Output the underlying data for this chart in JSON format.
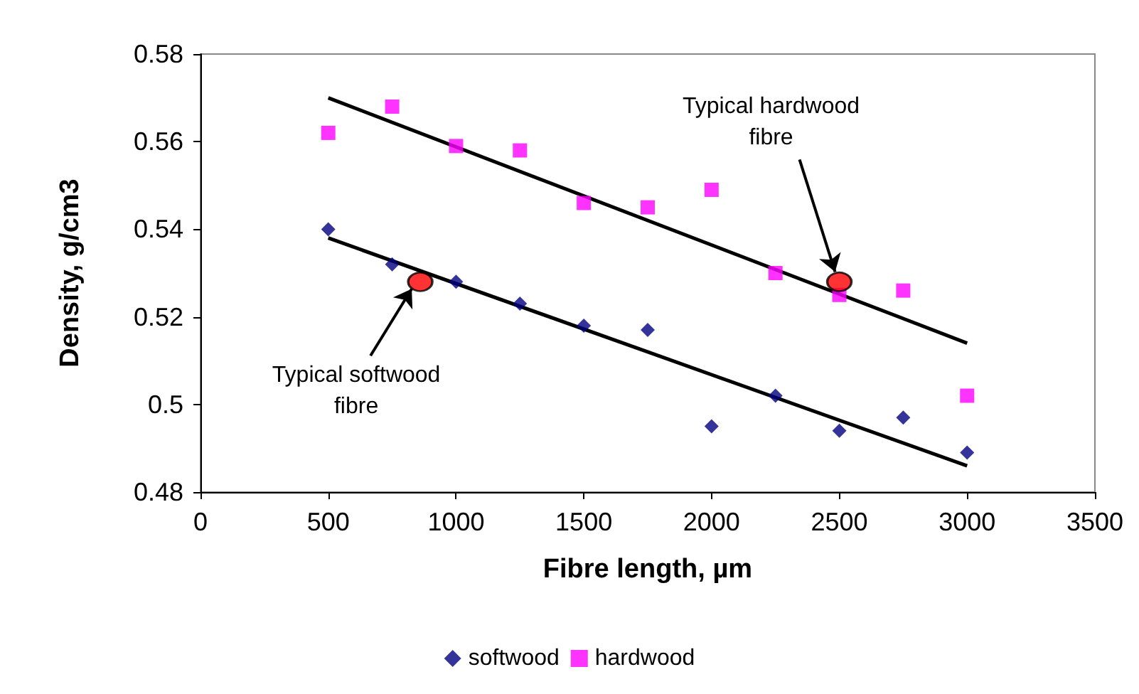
{
  "chart_data": {
    "type": "scatter",
    "xlabel": "Fibre length, µm",
    "ylabel": "Density, g/cm3",
    "x": [
      500,
      750,
      1000,
      1250,
      1500,
      1750,
      2000,
      2250,
      2500,
      2750,
      3000
    ],
    "series": [
      {
        "name": "softwood",
        "color": "#000080",
        "marker": "diamond",
        "values": [
          0.54,
          0.532,
          0.528,
          0.523,
          0.518,
          0.517,
          0.495,
          0.502,
          0.494,
          0.497,
          0.489
        ]
      },
      {
        "name": "hardwood",
        "color": "#ff00ff",
        "marker": "square",
        "values": [
          0.562,
          0.568,
          0.559,
          0.558,
          0.546,
          0.545,
          0.549,
          0.53,
          0.525,
          0.526,
          0.502
        ]
      },
      {
        "type": "line",
        "color": "#000000",
        "x": [
          500,
          3000
        ],
        "values": [
          0.538,
          0.486
        ]
      },
      {
        "type": "line",
        "color": "#000000",
        "x": [
          500,
          3000
        ],
        "values": [
          0.57,
          0.514
        ]
      },
      {
        "color": "#ff0000",
        "marker": "circle",
        "x": [
          860,
          2500
        ],
        "values": [
          0.528,
          0.528
        ]
      }
    ],
    "annotations": [
      {
        "text": "Typical softwood\nfibre",
        "x": 860,
        "y": 0.528
      },
      {
        "text": "Typical hardwood\nfibre",
        "x": 2500,
        "y": 0.528
      }
    ],
    "xlim": [
      0,
      3500
    ],
    "xticks": [
      0,
      500,
      1000,
      1500,
      2000,
      2500,
      3000,
      3500
    ],
    "ylim": [
      0.48,
      0.58
    ],
    "yticks": [
      0.48,
      0.5,
      0.52,
      0.54,
      0.56,
      0.58
    ],
    "grid": false,
    "legend": "bottom"
  }
}
